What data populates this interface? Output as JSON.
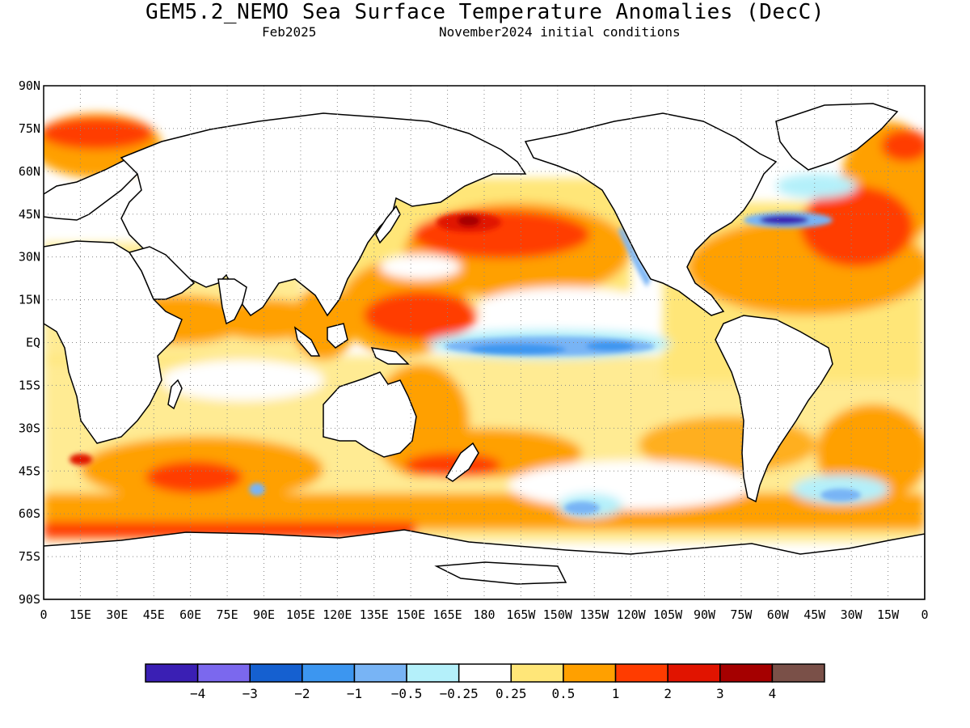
{
  "title": "GEM5.2_NEMO Sea Surface Temperature Anomalies (DecC)",
  "subtitle_left": "Feb2025",
  "subtitle_right": "November2024 initial conditions",
  "map_data": {
    "type": "filled-contour-map",
    "variable": "Sea Surface Temperature Anomalies",
    "units": "DecC",
    "lon_range": [
      0,
      360
    ],
    "lat_range": [
      -90,
      90
    ],
    "grid": "dotted",
    "lat_tick_labels": [
      "90N",
      "75N",
      "60N",
      "45N",
      "30N",
      "15N",
      "EQ",
      "15S",
      "30S",
      "45S",
      "60S",
      "75S",
      "90S"
    ],
    "lon_tick_labels": [
      "0",
      "15E",
      "30E",
      "45E",
      "60E",
      "75E",
      "90E",
      "105E",
      "120E",
      "135E",
      "150E",
      "165E",
      "180",
      "165W",
      "150W",
      "135W",
      "120W",
      "105W",
      "90W",
      "75W",
      "60W",
      "45W",
      "30W",
      "15W",
      "0"
    ],
    "anomaly_regions": [
      {
        "name": "north-pacific-warm",
        "lon": [
          150,
          240
        ],
        "lat": [
          30,
          50
        ],
        "level": 2
      },
      {
        "name": "north-pacific-core",
        "lon": [
          175,
          205
        ],
        "lat": [
          38,
          46
        ],
        "level": 3
      },
      {
        "name": "west-pacific-warm",
        "lon": [
          140,
          210
        ],
        "lat": [
          0,
          25
        ],
        "level": 1
      },
      {
        "name": "equatorial-pacific-cool",
        "lon": [
          170,
          280
        ],
        "lat": [
          -5,
          5
        ],
        "level": -1
      },
      {
        "name": "gulf-stream-cool",
        "lon": [
          290,
          320
        ],
        "lat": [
          38,
          46
        ],
        "level": -3
      },
      {
        "name": "north-atlantic-warm",
        "lon": [
          310,
          360
        ],
        "lat": [
          30,
          60
        ],
        "level": 2
      },
      {
        "name": "southern-ocean-warm",
        "lon": [
          0,
          360
        ],
        "lat": [
          -68,
          -62
        ],
        "level": 2
      },
      {
        "name": "arctic-europe-warm",
        "lon": [
          0,
          40
        ],
        "lat": [
          65,
          80
        ],
        "level": 2
      }
    ]
  },
  "colorbar": {
    "colors": [
      "#3a1fb4",
      "#7b68ee",
      "#1560d0",
      "#3c96f0",
      "#78b4f5",
      "#b4f0fa",
      "#ffffff",
      "#ffe678",
      "#ffa000",
      "#ff3c00",
      "#e11400",
      "#a50000",
      "#7a5048"
    ],
    "labels": [
      "−4",
      "−3",
      "−2",
      "−1",
      "−0.5",
      "−0.25",
      "0.25",
      "0.5",
      "1",
      "2",
      "3",
      "4"
    ]
  }
}
